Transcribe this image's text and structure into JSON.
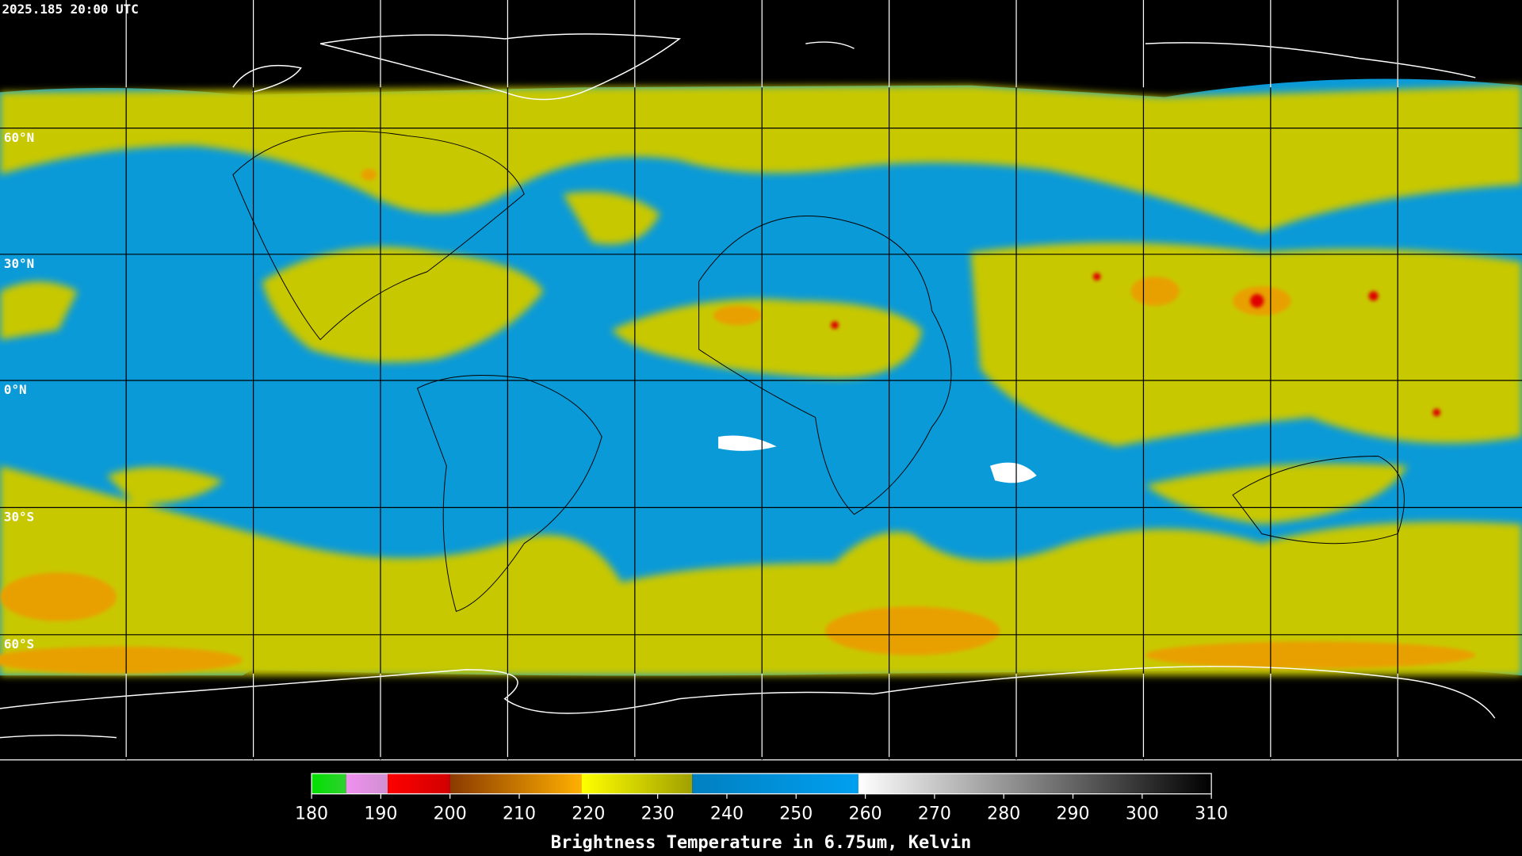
{
  "map": {
    "timestamp": "2025.185 20:00 UTC",
    "latitude_labels": [
      "60°N",
      "30°N",
      "0°N",
      "30°S",
      "60°S"
    ],
    "colorbar": {
      "title": "Brightness Temperature in 6.75um, Kelvin",
      "range": [
        180,
        310
      ],
      "ticks": [
        180,
        190,
        200,
        210,
        220,
        230,
        240,
        250,
        260,
        270,
        280,
        290,
        300,
        310
      ],
      "segments": [
        {
          "from": 180,
          "to": 185,
          "colors": [
            "#00e000",
            "#30d030"
          ]
        },
        {
          "from": 185,
          "to": 191,
          "colors": [
            "#f090f0",
            "#d090d0"
          ]
        },
        {
          "from": 191,
          "to": 200,
          "colors": [
            "#ff0000",
            "#d00000"
          ]
        },
        {
          "from": 200,
          "to": 219,
          "colors": [
            "#8a3a00",
            "#ffb000"
          ]
        },
        {
          "from": 219,
          "to": 235,
          "colors": [
            "#ffff00",
            "#a0a000"
          ]
        },
        {
          "from": 235,
          "to": 259,
          "colors": [
            "#0080c0",
            "#00a0f0"
          ]
        },
        {
          "from": 259,
          "to": 310,
          "colors": [
            "#ffffff",
            "#000000"
          ]
        }
      ]
    }
  }
}
